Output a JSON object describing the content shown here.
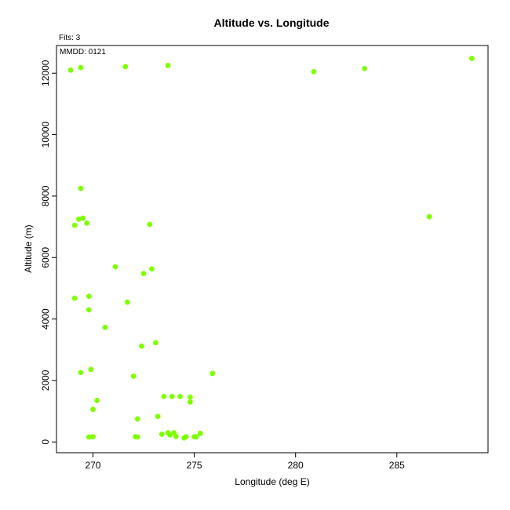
{
  "chart_data": {
    "type": "scatter",
    "title": "Altitude vs. Longitude",
    "xlabel": "Longitude (deg E)",
    "ylabel": "Altitude (m)",
    "xlim": [
      268.2,
      289.5
    ],
    "ylim": [
      -350,
      12900
    ],
    "xticks": [
      270,
      275,
      280,
      285
    ],
    "yticks": [
      0,
      2000,
      4000,
      6000,
      8000,
      10000,
      12000
    ],
    "annotations": {
      "fits": "Fits: 3",
      "mmdd": "MMDD: 0121"
    },
    "point_color": "#7fff00",
    "grid": false,
    "points": [
      {
        "x": 268.9,
        "y": 12100
      },
      {
        "x": 269.4,
        "y": 12180
      },
      {
        "x": 271.6,
        "y": 12210
      },
      {
        "x": 273.7,
        "y": 12250
      },
      {
        "x": 280.9,
        "y": 12050
      },
      {
        "x": 283.4,
        "y": 12150
      },
      {
        "x": 288.7,
        "y": 12480
      },
      {
        "x": 269.4,
        "y": 8250
      },
      {
        "x": 269.3,
        "y": 7250
      },
      {
        "x": 269.5,
        "y": 7280
      },
      {
        "x": 269.1,
        "y": 7050
      },
      {
        "x": 269.7,
        "y": 7120
      },
      {
        "x": 272.8,
        "y": 7080
      },
      {
        "x": 286.6,
        "y": 7330
      },
      {
        "x": 271.1,
        "y": 5700
      },
      {
        "x": 272.9,
        "y": 5630
      },
      {
        "x": 272.5,
        "y": 5480
      },
      {
        "x": 269.1,
        "y": 4680
      },
      {
        "x": 269.8,
        "y": 4740
      },
      {
        "x": 271.7,
        "y": 4550
      },
      {
        "x": 269.8,
        "y": 4300
      },
      {
        "x": 270.6,
        "y": 3730
      },
      {
        "x": 273.1,
        "y": 3230
      },
      {
        "x": 272.4,
        "y": 3120
      },
      {
        "x": 269.4,
        "y": 2260
      },
      {
        "x": 269.9,
        "y": 2360
      },
      {
        "x": 272.0,
        "y": 2140
      },
      {
        "x": 275.9,
        "y": 2230
      },
      {
        "x": 273.5,
        "y": 1480
      },
      {
        "x": 273.9,
        "y": 1480
      },
      {
        "x": 274.3,
        "y": 1480
      },
      {
        "x": 274.8,
        "y": 1460
      },
      {
        "x": 274.8,
        "y": 1300
      },
      {
        "x": 270.2,
        "y": 1350
      },
      {
        "x": 270.0,
        "y": 1060
      },
      {
        "x": 273.2,
        "y": 830
      },
      {
        "x": 272.2,
        "y": 750
      },
      {
        "x": 269.8,
        "y": 160
      },
      {
        "x": 270.0,
        "y": 170
      },
      {
        "x": 272.1,
        "y": 170
      },
      {
        "x": 272.2,
        "y": 160
      },
      {
        "x": 273.4,
        "y": 250
      },
      {
        "x": 273.7,
        "y": 300
      },
      {
        "x": 273.8,
        "y": 230
      },
      {
        "x": 274.0,
        "y": 300
      },
      {
        "x": 274.1,
        "y": 180
      },
      {
        "x": 274.5,
        "y": 130
      },
      {
        "x": 274.6,
        "y": 170
      },
      {
        "x": 275.0,
        "y": 170
      },
      {
        "x": 275.1,
        "y": 170
      },
      {
        "x": 275.3,
        "y": 280
      }
    ]
  }
}
